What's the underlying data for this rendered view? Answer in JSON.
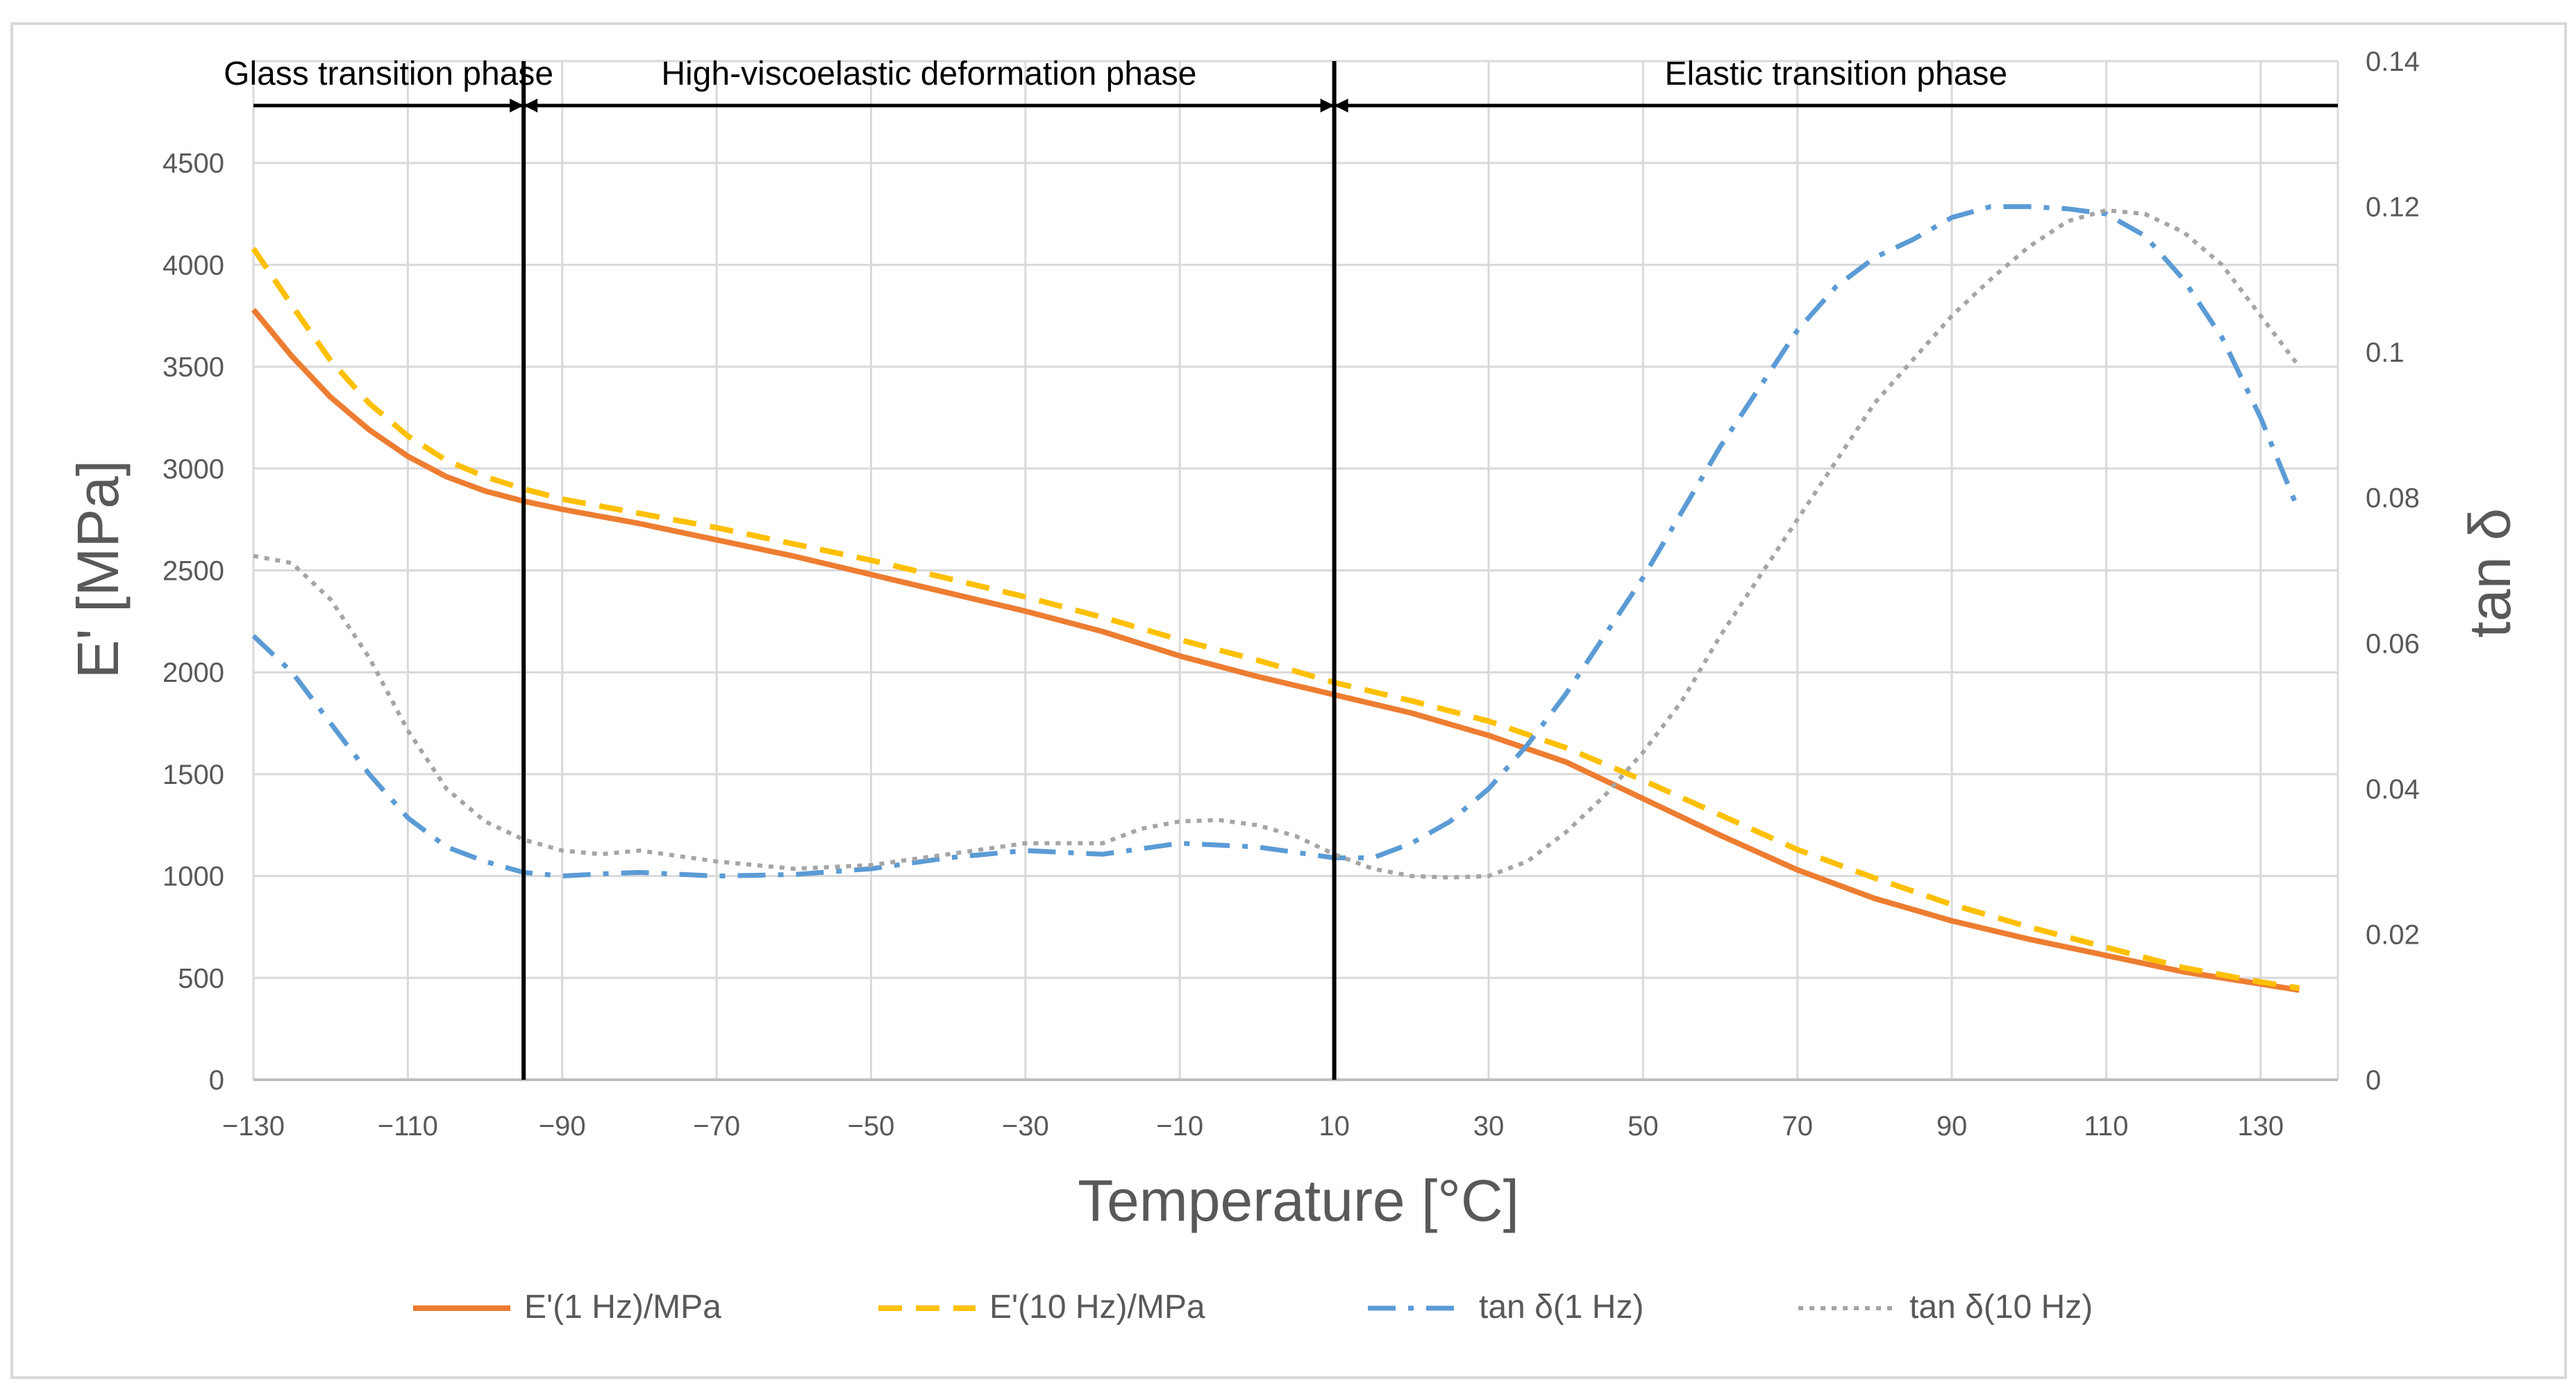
{
  "chart_data": {
    "type": "line",
    "xlabel": "Temperature [°C]",
    "ylabel": "E' [MPa]",
    "y2label": "tan δ",
    "xlim": [
      -130,
      140
    ],
    "ylim": [
      0,
      5000
    ],
    "y2lim": [
      0,
      0.14
    ],
    "grid": true,
    "x_ticks": [
      "−130",
      "−110",
      "−90",
      "−70",
      "−50",
      "−30",
      "−10",
      "10",
      "30",
      "50",
      "70",
      "90",
      "110",
      "130"
    ],
    "x_tick_values": [
      -130,
      -110,
      -90,
      -70,
      -50,
      -30,
      -10,
      10,
      30,
      50,
      70,
      90,
      110,
      130
    ],
    "y_ticks": [
      "0",
      "500",
      "1000",
      "1500",
      "2000",
      "2500",
      "3000",
      "3500",
      "4000",
      "4500"
    ],
    "y_tick_values": [
      0,
      500,
      1000,
      1500,
      2000,
      2500,
      3000,
      3500,
      4000,
      4500
    ],
    "y2_ticks": [
      "0",
      "0.02",
      "0.04",
      "0.06",
      "0.08",
      "0.1",
      "0.12",
      "0.14"
    ],
    "y2_tick_values": [
      0,
      0.02,
      0.04,
      0.06,
      0.08,
      0.1,
      0.12,
      0.14
    ],
    "phase_boundaries": [
      -95,
      10
    ],
    "phases": [
      {
        "label": "Glass transition phase",
        "from": -130,
        "to": -95
      },
      {
        "label": "High-viscoelastic deformation phase",
        "from": -95,
        "to": 10
      },
      {
        "label": "Elastic transition phase",
        "from": 10,
        "to": 140
      }
    ],
    "series": [
      {
        "name": "E'(1 Hz)/MPa",
        "axis": "left",
        "color": "#ED7D31",
        "dash": "solid",
        "x": [
          -130,
          -125,
          -120,
          -115,
          -110,
          -105,
          -100,
          -95,
          -90,
          -80,
          -70,
          -60,
          -50,
          -40,
          -30,
          -20,
          -10,
          0,
          10,
          20,
          30,
          40,
          50,
          60,
          70,
          80,
          90,
          100,
          110,
          120,
          130,
          135
        ],
        "y": [
          3780,
          3550,
          3350,
          3190,
          3060,
          2960,
          2890,
          2840,
          2800,
          2730,
          2650,
          2570,
          2480,
          2390,
          2300,
          2200,
          2080,
          1980,
          1890,
          1800,
          1690,
          1560,
          1380,
          1200,
          1030,
          890,
          780,
          690,
          610,
          530,
          470,
          440
        ]
      },
      {
        "name": "E'(10 Hz)/MPa",
        "axis": "left",
        "color": "#FFC000",
        "dash": "dashed",
        "x": [
          -130,
          -125,
          -120,
          -115,
          -110,
          -105,
          -100,
          -95,
          -90,
          -80,
          -70,
          -60,
          -50,
          -40,
          -30,
          -20,
          -10,
          0,
          10,
          20,
          30,
          40,
          50,
          60,
          70,
          80,
          90,
          100,
          110,
          120,
          130,
          135
        ],
        "y": [
          4080,
          3800,
          3530,
          3320,
          3160,
          3040,
          2960,
          2900,
          2850,
          2780,
          2710,
          2630,
          2550,
          2460,
          2370,
          2270,
          2160,
          2060,
          1950,
          1860,
          1760,
          1630,
          1470,
          1300,
          1130,
          990,
          860,
          750,
          650,
          550,
          480,
          450
        ]
      },
      {
        "name": "tan δ(1 Hz)",
        "axis": "right",
        "color": "#5B9BD5",
        "dash": "dashdot",
        "x": [
          -130,
          -125,
          -120,
          -115,
          -110,
          -105,
          -100,
          -95,
          -90,
          -85,
          -80,
          -70,
          -60,
          -50,
          -40,
          -30,
          -20,
          -10,
          0,
          10,
          15,
          20,
          25,
          30,
          35,
          40,
          45,
          50,
          55,
          60,
          65,
          70,
          75,
          80,
          85,
          90,
          95,
          100,
          105,
          110,
          115,
          120,
          125,
          130,
          135
        ],
        "y": [
          0.061,
          0.056,
          0.049,
          0.042,
          0.036,
          0.032,
          0.03,
          0.0285,
          0.028,
          0.0283,
          0.0285,
          0.028,
          0.0282,
          0.029,
          0.0305,
          0.0315,
          0.031,
          0.0325,
          0.032,
          0.0305,
          0.0305,
          0.0325,
          0.0355,
          0.04,
          0.046,
          0.053,
          0.061,
          0.069,
          0.078,
          0.087,
          0.095,
          0.103,
          0.109,
          0.113,
          0.1155,
          0.1185,
          0.12,
          0.12,
          0.1197,
          0.119,
          0.116,
          0.11,
          0.102,
          0.091,
          0.078
        ]
      },
      {
        "name": "tan δ(10 Hz)",
        "axis": "right",
        "color": "#A5A5A5",
        "dash": "dotted",
        "x": [
          -130,
          -125,
          -120,
          -115,
          -110,
          -105,
          -100,
          -95,
          -90,
          -85,
          -80,
          -70,
          -60,
          -50,
          -40,
          -30,
          -25,
          -20,
          -15,
          -10,
          -5,
          0,
          5,
          10,
          15,
          20,
          25,
          30,
          35,
          40,
          45,
          50,
          55,
          60,
          65,
          70,
          75,
          80,
          85,
          90,
          95,
          100,
          105,
          110,
          115,
          120,
          125,
          130,
          135
        ],
        "y": [
          0.072,
          0.071,
          0.066,
          0.058,
          0.048,
          0.04,
          0.0355,
          0.033,
          0.0315,
          0.031,
          0.0315,
          0.03,
          0.029,
          0.0295,
          0.031,
          0.0325,
          0.0325,
          0.0325,
          0.0345,
          0.0355,
          0.0357,
          0.035,
          0.0335,
          0.031,
          0.029,
          0.028,
          0.0278,
          0.028,
          0.03,
          0.034,
          0.039,
          0.045,
          0.052,
          0.061,
          0.069,
          0.077,
          0.085,
          0.093,
          0.099,
          0.105,
          0.11,
          0.1145,
          0.118,
          0.1195,
          0.119,
          0.1165,
          0.112,
          0.105,
          0.098
        ]
      }
    ]
  }
}
